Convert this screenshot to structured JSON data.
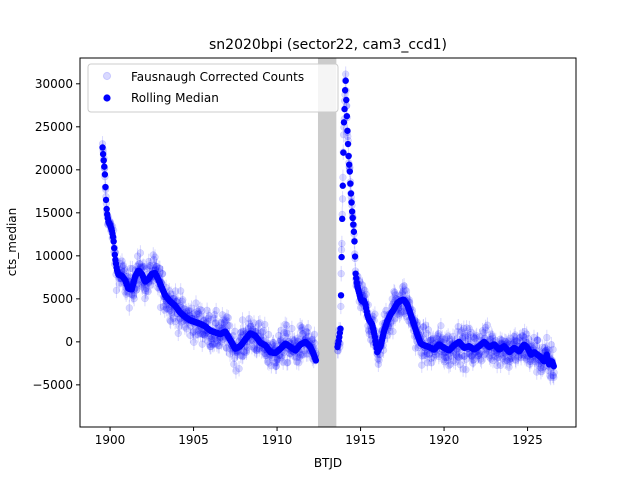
{
  "chart_data": {
    "type": "scatter",
    "title": "sn2020bpi (sector22, cam3_ccd1)",
    "xlabel": "BTJD",
    "ylabel": "cts_median",
    "xlim": [
      1898.2,
      1927.9
    ],
    "ylim": [
      -9900,
      33000
    ],
    "xticks": [
      1900,
      1905,
      1910,
      1915,
      1920,
      1925
    ],
    "yticks": [
      -5000,
      0,
      5000,
      10000,
      15000,
      20000,
      25000,
      30000
    ],
    "grid": false,
    "legend_position": "top-left",
    "shaded_region": {
      "x_start": 1912.45,
      "x_end": 1913.55,
      "color": "#cccccc"
    },
    "series": [
      {
        "name": "Fausnaugh Corrected Counts",
        "color": "#0000ff",
        "alpha": 0.15
      },
      {
        "name": "Rolling Median",
        "color": "#0000ff",
        "alpha": 1
      }
    ],
    "median_curve": [
      [
        1899.55,
        22600
      ],
      [
        1899.6,
        21500
      ],
      [
        1899.65,
        20500
      ],
      [
        1899.7,
        19200
      ],
      [
        1899.75,
        16800
      ],
      [
        1899.8,
        15300
      ],
      [
        1899.85,
        14500
      ],
      [
        1899.9,
        14000
      ],
      [
        1900.0,
        13600
      ],
      [
        1900.1,
        13000
      ],
      [
        1900.2,
        12000
      ],
      [
        1900.3,
        9800
      ],
      [
        1900.4,
        8500
      ],
      [
        1900.5,
        7800
      ],
      [
        1900.7,
        7700
      ],
      [
        1900.9,
        7200
      ],
      [
        1901.1,
        6200
      ],
      [
        1901.3,
        6100
      ],
      [
        1901.5,
        7600
      ],
      [
        1901.7,
        8300
      ],
      [
        1901.9,
        7900
      ],
      [
        1902.1,
        7000
      ],
      [
        1902.3,
        7300
      ],
      [
        1902.5,
        7900
      ],
      [
        1902.7,
        8000
      ],
      [
        1902.9,
        7200
      ],
      [
        1903.1,
        6300
      ],
      [
        1903.3,
        5400
      ],
      [
        1903.6,
        4700
      ],
      [
        1903.9,
        4200
      ],
      [
        1904.2,
        3400
      ],
      [
        1904.5,
        2900
      ],
      [
        1904.8,
        2500
      ],
      [
        1905.1,
        2300
      ],
      [
        1905.4,
        2100
      ],
      [
        1905.7,
        1800
      ],
      [
        1906.0,
        1300
      ],
      [
        1906.3,
        1100
      ],
      [
        1906.6,
        900
      ],
      [
        1906.9,
        1200
      ],
      [
        1907.2,
        200
      ],
      [
        1907.5,
        -800
      ],
      [
        1907.8,
        -500
      ],
      [
        1908.1,
        300
      ],
      [
        1908.4,
        1000
      ],
      [
        1908.7,
        700
      ],
      [
        1909.0,
        -100
      ],
      [
        1909.3,
        -400
      ],
      [
        1909.6,
        -1200
      ],
      [
        1909.9,
        -1300
      ],
      [
        1910.2,
        -800
      ],
      [
        1910.5,
        -200
      ],
      [
        1910.8,
        -600
      ],
      [
        1911.1,
        -1000
      ],
      [
        1911.4,
        -300
      ],
      [
        1911.7,
        0
      ],
      [
        1912.0,
        -600
      ],
      [
        1912.2,
        -1500
      ],
      [
        1912.35,
        -2300
      ],
      [
        1913.6,
        -800
      ],
      [
        1913.7,
        200
      ],
      [
        1913.8,
        1600
      ],
      [
        1913.9,
        14300
      ],
      [
        1914.0,
        25300
      ],
      [
        1914.05,
        27500
      ],
      [
        1914.1,
        31000
      ],
      [
        1914.15,
        27800
      ],
      [
        1914.2,
        25200
      ],
      [
        1914.25,
        23000
      ],
      [
        1914.3,
        21000
      ],
      [
        1914.35,
        20000
      ],
      [
        1914.4,
        18000
      ],
      [
        1914.45,
        16500
      ],
      [
        1914.5,
        15000
      ],
      [
        1914.55,
        14000
      ],
      [
        1914.6,
        12800
      ],
      [
        1914.65,
        11200
      ],
      [
        1914.7,
        8000
      ],
      [
        1914.8,
        6500
      ],
      [
        1914.9,
        5800
      ],
      [
        1915.0,
        5000
      ],
      [
        1915.1,
        4700
      ],
      [
        1915.2,
        4800
      ],
      [
        1915.3,
        4300
      ],
      [
        1915.4,
        3200
      ],
      [
        1915.5,
        2600
      ],
      [
        1915.7,
        2000
      ],
      [
        1915.85,
        700
      ],
      [
        1916.0,
        -1200
      ],
      [
        1916.2,
        -500
      ],
      [
        1916.4,
        1200
      ],
      [
        1916.6,
        2400
      ],
      [
        1916.8,
        3200
      ],
      [
        1917.0,
        3800
      ],
      [
        1917.2,
        4500
      ],
      [
        1917.4,
        4800
      ],
      [
        1917.6,
        4900
      ],
      [
        1917.8,
        4300
      ],
      [
        1918.0,
        3200
      ],
      [
        1918.2,
        2000
      ],
      [
        1918.4,
        800
      ],
      [
        1918.6,
        -200
      ],
      [
        1918.8,
        -400
      ],
      [
        1919.1,
        -600
      ],
      [
        1919.4,
        -900
      ],
      [
        1919.7,
        -300
      ],
      [
        1920.0,
        -700
      ],
      [
        1920.3,
        -1000
      ],
      [
        1920.6,
        -400
      ],
      [
        1920.9,
        0
      ],
      [
        1921.2,
        -700
      ],
      [
        1921.5,
        -500
      ],
      [
        1921.8,
        -900
      ],
      [
        1922.1,
        -500
      ],
      [
        1922.4,
        0
      ],
      [
        1922.7,
        -600
      ],
      [
        1923.0,
        -300
      ],
      [
        1923.3,
        -900
      ],
      [
        1923.6,
        -500
      ],
      [
        1923.9,
        -1200
      ],
      [
        1924.2,
        -700
      ],
      [
        1924.5,
        -1100
      ],
      [
        1924.8,
        -300
      ],
      [
        1925.0,
        -700
      ],
      [
        1925.2,
        -1500
      ],
      [
        1925.4,
        -1200
      ],
      [
        1925.6,
        -1500
      ],
      [
        1925.8,
        -1800
      ],
      [
        1926.0,
        -2300
      ],
      [
        1926.15,
        -1500
      ],
      [
        1926.3,
        -2700
      ],
      [
        1926.45,
        -2200
      ],
      [
        1926.6,
        -3000
      ]
    ]
  }
}
